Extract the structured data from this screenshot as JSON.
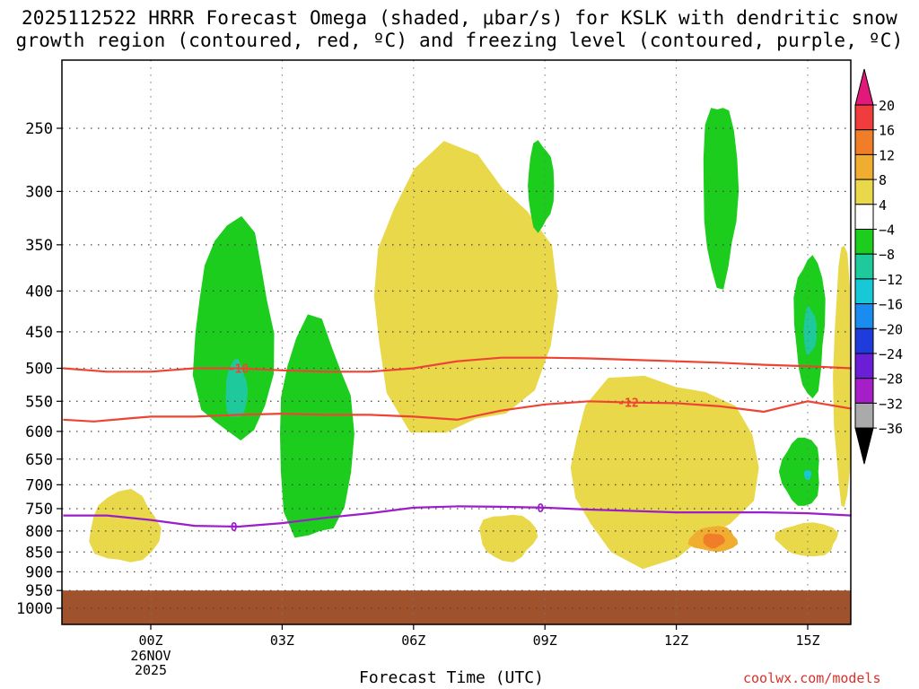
{
  "figure": {
    "title_line1": "2025112522 HRRR Forecast Omega (shaded, μbar/s) for KSLK with dendritic snow",
    "title_line2": "growth region (contoured, red, ºC) and freezing level (contoured, purple, ºC)",
    "credit": "coolwx.com/models"
  },
  "chart_data": {
    "type": "time-height contour",
    "xlabel": "Forecast Time (UTC)",
    "x_ticks": [
      {
        "label": "00Z",
        "hour": 0,
        "sub": [
          "26NOV",
          "2025"
        ]
      },
      {
        "label": "03Z",
        "hour": 3
      },
      {
        "label": "06Z",
        "hour": 6
      },
      {
        "label": "09Z",
        "hour": 9
      },
      {
        "label": "12Z",
        "hour": 12
      },
      {
        "label": "15Z",
        "hour": 15
      }
    ],
    "xlim_hours": [
      -2,
      16
    ],
    "y_ticks_hPa": [
      250,
      300,
      350,
      400,
      450,
      500,
      550,
      600,
      650,
      700,
      750,
      800,
      850,
      900,
      950,
      1000
    ],
    "ylim_hPa": [
      200,
      1050
    ],
    "y_scale": "log",
    "grid": true,
    "colorbar": {
      "labels": [
        "20",
        "16",
        "12",
        "8",
        "4",
        "−4",
        "−8",
        "−12",
        "−16",
        "−20",
        "−24",
        "−28",
        "−32",
        "−36"
      ],
      "bins": [
        {
          "range": ">20",
          "color": "#e0197a"
        },
        {
          "range": "16–20",
          "color": "#f03c3c"
        },
        {
          "range": "12–16",
          "color": "#f07d28"
        },
        {
          "range": "8–12",
          "color": "#f0ad30"
        },
        {
          "range": "4–8",
          "color": "#e8d84a"
        },
        {
          "range": "-4–4",
          "color": "#ffffff"
        },
        {
          "range": "-8–-4",
          "color": "#1dcd1d"
        },
        {
          "range": "-12–-8",
          "color": "#1ec99b"
        },
        {
          "range": "-16–-12",
          "color": "#17c8d6"
        },
        {
          "range": "-20–-16",
          "color": "#1a8cf0"
        },
        {
          "range": "-24–-20",
          "color": "#1e3cdc"
        },
        {
          "range": "-28–-24",
          "color": "#6a1ed6"
        },
        {
          "range": "-32–-28",
          "color": "#a51ec8"
        },
        {
          "range": "-36–-32",
          "color": "#aaaaaa"
        },
        {
          "range": "<-36",
          "color": "#000000"
        }
      ]
    },
    "ground_color": "#a0522d",
    "ground_top_hPa": 950,
    "contours": [
      {
        "name": "-18",
        "color": "#ee4433",
        "label_at": {
          "hour": 2,
          "label": "-18"
        },
        "points": [
          [
            -2,
            500
          ],
          [
            -1,
            505
          ],
          [
            0,
            505
          ],
          [
            1,
            500
          ],
          [
            2,
            500
          ],
          [
            3,
            503
          ],
          [
            4,
            505
          ],
          [
            5,
            505
          ],
          [
            6,
            500
          ],
          [
            7,
            490
          ],
          [
            8,
            485
          ],
          [
            9,
            485
          ],
          [
            10,
            486
          ],
          [
            11,
            488
          ],
          [
            12,
            490
          ],
          [
            13,
            492
          ],
          [
            14,
            495
          ],
          [
            15,
            497
          ],
          [
            16,
            500
          ]
        ]
      },
      {
        "name": "-12",
        "color": "#ee4433",
        "label_at": {
          "hour": 10.9,
          "label": "-12"
        },
        "points": [
          [
            -2,
            580
          ],
          [
            -1.3,
            583
          ],
          [
            -0.5,
            578
          ],
          [
            0,
            575
          ],
          [
            1,
            575
          ],
          [
            2,
            572
          ],
          [
            3,
            570
          ],
          [
            4,
            572
          ],
          [
            5,
            572
          ],
          [
            6,
            575
          ],
          [
            7,
            580
          ],
          [
            8,
            565
          ],
          [
            9,
            555
          ],
          [
            10,
            550
          ],
          [
            11,
            552
          ],
          [
            12,
            553
          ],
          [
            13,
            558
          ],
          [
            14,
            567
          ],
          [
            14.4,
            560
          ],
          [
            15,
            550
          ],
          [
            16,
            562
          ]
        ]
      },
      {
        "name": "0",
        "color": "#9b1ec8",
        "label_at": [
          {
            "hour": 1.9,
            "label": "0"
          },
          {
            "hour": 8.9,
            "label": "0"
          }
        ],
        "points": [
          [
            -2,
            765
          ],
          [
            -1,
            765
          ],
          [
            0,
            775
          ],
          [
            1,
            788
          ],
          [
            2,
            790
          ],
          [
            3,
            782
          ],
          [
            4,
            770
          ],
          [
            5,
            760
          ],
          [
            6,
            748
          ],
          [
            7,
            745
          ],
          [
            8,
            746
          ],
          [
            9,
            748
          ],
          [
            10,
            752
          ],
          [
            11,
            755
          ],
          [
            12,
            758
          ],
          [
            13,
            758
          ],
          [
            14,
            758
          ],
          [
            15,
            760
          ],
          [
            16,
            765
          ]
        ]
      }
    ],
    "omega_regions": [
      {
        "color_bin": "4–8",
        "approx_hours": [
          -1.4,
          0.2
        ],
        "approx_hPa": [
          715,
          880
        ]
      },
      {
        "color_bin": "4–8",
        "approx_hours": [
          5.0,
          9.2
        ],
        "approx_hPa": [
          270,
          610
        ]
      },
      {
        "color_bin": "4–8",
        "approx_hours": [
          9.5,
          13.8
        ],
        "approx_hPa": [
          510,
          870
        ]
      },
      {
        "color_bin": "4–8",
        "approx_hours": [
          7.5,
          8.8
        ],
        "approx_hPa": [
          760,
          870
        ]
      },
      {
        "color_bin": "4–8",
        "approx_hours": [
          14.3,
          15.7
        ],
        "approx_hPa": [
          780,
          860
        ]
      },
      {
        "color_bin": "4–8",
        "approx_hours": [
          15.6,
          16
        ],
        "approx_hPa": [
          350,
          750
        ]
      },
      {
        "color_bin": "8–12",
        "approx_hours": [
          12.3,
          13.4
        ],
        "approx_hPa": [
          790,
          850
        ]
      },
      {
        "color_bin": "12–16",
        "approx_hours": [
          12.6,
          13.1
        ],
        "approx_hPa": [
          805,
          840
        ]
      },
      {
        "color_bin": "-8–-4",
        "approx_hours": [
          1.0,
          2.8
        ],
        "approx_hPa": [
          330,
          620
        ]
      },
      {
        "color_bin": "-8–-4",
        "approx_hours": [
          2.9,
          4.6
        ],
        "approx_hPa": [
          440,
          830
        ]
      },
      {
        "color_bin": "-8–-4",
        "approx_hours": [
          8.6,
          9.2
        ],
        "approx_hPa": [
          260,
          335
        ]
      },
      {
        "color_bin": "-8–-4",
        "approx_hours": [
          12.6,
          13.4
        ],
        "approx_hPa": [
          230,
          390
        ]
      },
      {
        "color_bin": "-8–-4",
        "approx_hours": [
          14.7,
          15.4
        ],
        "approx_hPa": [
          360,
          540
        ]
      },
      {
        "color_bin": "-8–-4",
        "approx_hours": [
          14.4,
          15.3
        ],
        "approx_hPa": [
          610,
          745
        ]
      },
      {
        "color_bin": "-12–-8",
        "approx_hours": [
          1.7,
          2.2
        ],
        "approx_hPa": [
          490,
          580
        ]
      },
      {
        "color_bin": "-12–-8",
        "approx_hours": [
          14.9,
          15.2
        ],
        "approx_hPa": [
          420,
          480
        ]
      },
      {
        "color_bin": "-16–-12",
        "approx_hours": [
          14.95,
          15.05
        ],
        "approx_hPa": [
          670,
          690
        ]
      }
    ]
  }
}
